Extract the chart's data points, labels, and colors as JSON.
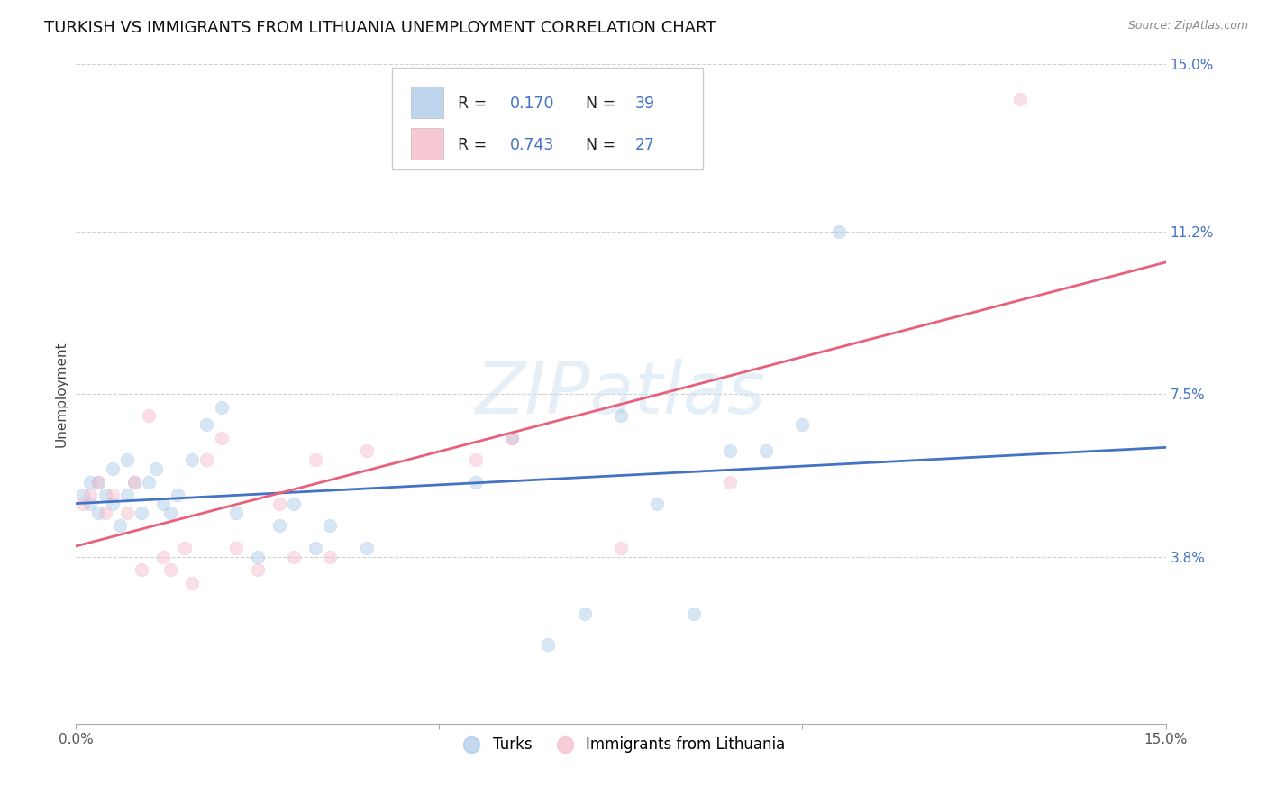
{
  "title": "TURKISH VS IMMIGRANTS FROM LITHUANIA UNEMPLOYMENT CORRELATION CHART",
  "source": "Source: ZipAtlas.com",
  "ylabel": "Unemployment",
  "xlim": [
    0.0,
    0.15
  ],
  "ylim": [
    0.0,
    0.15
  ],
  "ytick_positions": [
    0.038,
    0.075,
    0.112,
    0.15
  ],
  "ytick_labels": [
    "3.8%",
    "7.5%",
    "11.2%",
    "15.0%"
  ],
  "watermark": "ZIPatlas",
  "turks_color": "#a8c8e8",
  "lithuania_color": "#f5b8c8",
  "turks_line_color": "#4472c4",
  "lithuania_line_color": "#e8607a",
  "turks_x": [
    0.001,
    0.002,
    0.002,
    0.003,
    0.003,
    0.004,
    0.005,
    0.005,
    0.006,
    0.007,
    0.007,
    0.008,
    0.009,
    0.01,
    0.011,
    0.012,
    0.013,
    0.014,
    0.016,
    0.018,
    0.02,
    0.022,
    0.025,
    0.028,
    0.03,
    0.033,
    0.035,
    0.04,
    0.055,
    0.06,
    0.065,
    0.07,
    0.075,
    0.08,
    0.085,
    0.09,
    0.095,
    0.1,
    0.105
  ],
  "turks_y": [
    0.052,
    0.05,
    0.055,
    0.048,
    0.055,
    0.052,
    0.05,
    0.058,
    0.045,
    0.052,
    0.06,
    0.055,
    0.048,
    0.055,
    0.058,
    0.05,
    0.048,
    0.052,
    0.06,
    0.068,
    0.072,
    0.048,
    0.038,
    0.045,
    0.05,
    0.04,
    0.045,
    0.04,
    0.055,
    0.065,
    0.018,
    0.025,
    0.07,
    0.05,
    0.025,
    0.062,
    0.062,
    0.068,
    0.112
  ],
  "lithuania_x": [
    0.001,
    0.002,
    0.003,
    0.004,
    0.005,
    0.007,
    0.008,
    0.009,
    0.01,
    0.012,
    0.013,
    0.015,
    0.016,
    0.018,
    0.02,
    0.022,
    0.025,
    0.028,
    0.03,
    0.033,
    0.035,
    0.04,
    0.055,
    0.06,
    0.075,
    0.09,
    0.13
  ],
  "lithuania_y": [
    0.05,
    0.052,
    0.055,
    0.048,
    0.052,
    0.048,
    0.055,
    0.035,
    0.07,
    0.038,
    0.035,
    0.04,
    0.032,
    0.06,
    0.065,
    0.04,
    0.035,
    0.05,
    0.038,
    0.06,
    0.038,
    0.062,
    0.06,
    0.065,
    0.04,
    0.055,
    0.142
  ],
  "background_color": "#ffffff",
  "grid_color": "#cccccc",
  "marker_size": 110,
  "marker_alpha": 0.45,
  "title_fontsize": 13,
  "axis_label_fontsize": 11,
  "tick_fontsize": 11,
  "legend_r1": "R = 0.170",
  "legend_n1": "N = 39",
  "legend_r2": "R = 0.743",
  "legend_n2": "N = 27"
}
